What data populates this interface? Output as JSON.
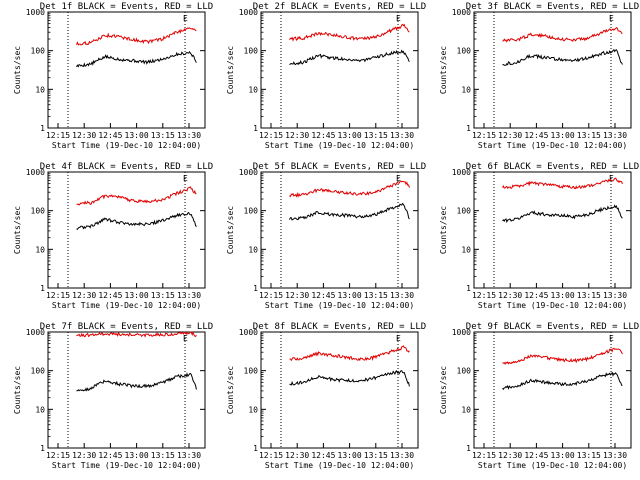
{
  "shared": {
    "x_tick_labels": [
      "12:15",
      "12:30",
      "12:45",
      "13:00",
      "13:15",
      "13:30"
    ],
    "y_tick_labels": [
      "1",
      "10",
      "100",
      "1000"
    ],
    "xlabel": "Start Time (19-Dec-10 12:04:00)",
    "ylabel": "Counts/sec",
    "marker_label": "E",
    "colors": {
      "events": "#000000",
      "lld": "#e00000",
      "axes": "#000000"
    }
  },
  "chart_data": [
    {
      "type": "line",
      "title": "Det 1f BLACK = Events, RED = LLD",
      "xlabel": "Start Time (19-Dec-10 12:04:00)",
      "ylabel": "Counts/sec",
      "x_ticks": [
        "12:15",
        "12:30",
        "12:45",
        "13:00",
        "13:15",
        "13:30"
      ],
      "yscale": "log",
      "ylim": [
        1,
        1000
      ],
      "xlim_minutes": [
        12.1,
        12.65
      ],
      "x": [
        12.2,
        12.25,
        12.3,
        12.35,
        12.4,
        12.45,
        12.5,
        12.55,
        12.6,
        12.62
      ],
      "series": [
        {
          "name": "Events",
          "color": "#000000",
          "values": [
            40,
            45,
            70,
            60,
            55,
            50,
            60,
            80,
            90,
            50
          ]
        },
        {
          "name": "LLD",
          "color": "#e00000",
          "values": [
            150,
            160,
            250,
            230,
            190,
            170,
            200,
            300,
            400,
            300
          ]
        }
      ],
      "vlines": [
        12.17,
        12.58
      ]
    },
    {
      "type": "line",
      "title": "Det 2f BLACK = Events, RED = LLD",
      "xlabel": "Start Time (19-Dec-10 12:04:00)",
      "ylabel": "Counts/sec",
      "x_ticks": [
        "12:15",
        "12:30",
        "12:45",
        "13:00",
        "13:15",
        "13:30"
      ],
      "yscale": "log",
      "ylim": [
        1,
        1000
      ],
      "xlim_minutes": [
        12.1,
        12.65
      ],
      "x": [
        12.2,
        12.25,
        12.3,
        12.35,
        12.4,
        12.45,
        12.5,
        12.55,
        12.6,
        12.62
      ],
      "series": [
        {
          "name": "Events",
          "color": "#000000",
          "values": [
            45,
            50,
            75,
            65,
            60,
            55,
            65,
            85,
            95,
            50
          ]
        },
        {
          "name": "LLD",
          "color": "#e00000",
          "values": [
            200,
            210,
            280,
            260,
            220,
            200,
            220,
            320,
            450,
            320
          ]
        }
      ],
      "vlines": [
        12.17,
        12.58
      ]
    },
    {
      "type": "line",
      "title": "Det 3f BLACK = Events, RED = LLD",
      "xlabel": "Start Time (19-Dec-10 12:04:00)",
      "ylabel": "Counts/sec",
      "x_ticks": [
        "12:15",
        "12:30",
        "12:45",
        "13:00",
        "13:15",
        "13:30"
      ],
      "yscale": "log",
      "ylim": [
        1,
        1000
      ],
      "xlim_minutes": [
        12.1,
        12.65
      ],
      "x": [
        12.2,
        12.25,
        12.3,
        12.35,
        12.4,
        12.45,
        12.5,
        12.55,
        12.6,
        12.62
      ],
      "series": [
        {
          "name": "Events",
          "color": "#000000",
          "values": [
            45,
            50,
            75,
            65,
            60,
            55,
            65,
            85,
            100,
            40
          ]
        },
        {
          "name": "LLD",
          "color": "#e00000",
          "values": [
            180,
            190,
            260,
            240,
            200,
            190,
            210,
            300,
            380,
            280
          ]
        }
      ],
      "vlines": [
        12.17,
        12.58
      ]
    },
    {
      "type": "line",
      "title": "Det 4f BLACK = Events, RED = LLD",
      "xlabel": "Start Time (19-Dec-10 12:04:00)",
      "ylabel": "Counts/sec",
      "x_ticks": [
        "12:15",
        "12:30",
        "12:45",
        "13:00",
        "13:15",
        "13:30"
      ],
      "yscale": "log",
      "ylim": [
        1,
        1000
      ],
      "xlim_minutes": [
        12.1,
        12.65
      ],
      "x": [
        12.2,
        12.25,
        12.3,
        12.35,
        12.4,
        12.45,
        12.5,
        12.55,
        12.6,
        12.62
      ],
      "series": [
        {
          "name": "Events",
          "color": "#000000",
          "values": [
            35,
            40,
            60,
            50,
            45,
            45,
            55,
            75,
            85,
            40
          ]
        },
        {
          "name": "LLD",
          "color": "#e00000",
          "values": [
            150,
            160,
            240,
            220,
            180,
            170,
            190,
            280,
            380,
            260
          ]
        }
      ],
      "vlines": [
        12.17,
        12.58
      ]
    },
    {
      "type": "line",
      "title": "Det 5f BLACK = Events, RED = LLD",
      "xlabel": "Start Time (19-Dec-10 12:04:00)",
      "ylabel": "Counts/sec",
      "x_ticks": [
        "12:15",
        "12:30",
        "12:45",
        "13:00",
        "13:15",
        "13:30"
      ],
      "yscale": "log",
      "ylim": [
        1,
        1000
      ],
      "xlim_minutes": [
        12.1,
        12.65
      ],
      "x": [
        12.2,
        12.25,
        12.3,
        12.35,
        12.4,
        12.45,
        12.5,
        12.55,
        12.6,
        12.62
      ],
      "series": [
        {
          "name": "Events",
          "color": "#000000",
          "values": [
            60,
            65,
            90,
            80,
            75,
            70,
            80,
            110,
            150,
            60
          ]
        },
        {
          "name": "LLD",
          "color": "#e00000",
          "values": [
            250,
            260,
            350,
            320,
            280,
            270,
            300,
            420,
            600,
            420
          ]
        }
      ],
      "vlines": [
        12.17,
        12.58
      ]
    },
    {
      "type": "line",
      "title": "Det 6f BLACK = Events, RED = LLD",
      "xlabel": "Start Time (19-Dec-10 12:04:00)",
      "ylabel": "Counts/sec",
      "x_ticks": [
        "12:15",
        "12:30",
        "12:45",
        "13:00",
        "13:15",
        "13:30"
      ],
      "yscale": "log",
      "ylim": [
        1,
        1000
      ],
      "xlim_minutes": [
        12.1,
        12.65
      ],
      "x": [
        12.2,
        12.25,
        12.3,
        12.35,
        12.4,
        12.45,
        12.5,
        12.55,
        12.6,
        12.62
      ],
      "series": [
        {
          "name": "Events",
          "color": "#000000",
          "values": [
            55,
            60,
            90,
            80,
            75,
            70,
            80,
            110,
            130,
            60
          ]
        },
        {
          "name": "LLD",
          "color": "#e00000",
          "values": [
            400,
            420,
            520,
            480,
            420,
            400,
            430,
            550,
            650,
            500
          ]
        }
      ],
      "vlines": [
        12.17,
        12.58
      ]
    },
    {
      "type": "line",
      "title": "Det 7f BLACK = Events, RED = LLD",
      "xlabel": "Start Time (19-Dec-10 12:04:00)",
      "ylabel": "Counts/sec",
      "x_ticks": [
        "12:15",
        "12:30",
        "12:45",
        "13:00",
        "13:15",
        "13:30"
      ],
      "yscale": "log",
      "ylim": [
        1,
        1000
      ],
      "xlim_minutes": [
        12.1,
        12.65
      ],
      "x": [
        12.2,
        12.25,
        12.3,
        12.35,
        12.4,
        12.45,
        12.5,
        12.55,
        12.6,
        12.62
      ],
      "series": [
        {
          "name": "Events",
          "color": "#000000",
          "values": [
            30,
            35,
            55,
            45,
            40,
            40,
            50,
            70,
            80,
            35
          ]
        },
        {
          "name": "LLD",
          "color": "#e00000",
          "values": [
            800,
            850,
            900,
            880,
            850,
            820,
            860,
            900,
            950,
            800
          ]
        }
      ],
      "vlines": [
        12.17,
        12.58
      ]
    },
    {
      "type": "line",
      "title": "Det 8f BLACK = Events, RED = LLD",
      "xlabel": "Start Time (19-Dec-10 12:04:00)",
      "ylabel": "Counts/sec",
      "x_ticks": [
        "12:15",
        "12:30",
        "12:45",
        "13:00",
        "13:15",
        "13:30"
      ],
      "yscale": "log",
      "ylim": [
        1,
        1000
      ],
      "xlim_minutes": [
        12.1,
        12.65
      ],
      "x": [
        12.2,
        12.25,
        12.3,
        12.35,
        12.4,
        12.45,
        12.5,
        12.55,
        12.6,
        12.62
      ],
      "series": [
        {
          "name": "Events",
          "color": "#000000",
          "values": [
            45,
            50,
            70,
            60,
            55,
            55,
            65,
            85,
            95,
            40
          ]
        },
        {
          "name": "LLD",
          "color": "#e00000",
          "values": [
            200,
            210,
            280,
            250,
            220,
            200,
            220,
            300,
            400,
            300
          ]
        }
      ],
      "vlines": [
        12.17,
        12.58
      ]
    },
    {
      "type": "line",
      "title": "Det 9f BLACK = Events, RED = LLD",
      "xlabel": "Start Time (19-Dec-10 12:04:00)",
      "ylabel": "Counts/sec",
      "x_ticks": [
        "12:15",
        "12:30",
        "12:45",
        "13:00",
        "13:15",
        "13:30"
      ],
      "yscale": "log",
      "ylim": [
        1,
        1000
      ],
      "xlim_minutes": [
        12.1,
        12.65
      ],
      "x": [
        12.2,
        12.25,
        12.3,
        12.35,
        12.4,
        12.45,
        12.5,
        12.55,
        12.6,
        12.62
      ],
      "series": [
        {
          "name": "Events",
          "color": "#000000",
          "values": [
            35,
            40,
            55,
            50,
            45,
            45,
            55,
            75,
            85,
            40
          ]
        },
        {
          "name": "LLD",
          "color": "#e00000",
          "values": [
            160,
            170,
            240,
            220,
            190,
            180,
            200,
            280,
            380,
            280
          ]
        }
      ],
      "vlines": [
        12.17,
        12.58
      ]
    }
  ]
}
